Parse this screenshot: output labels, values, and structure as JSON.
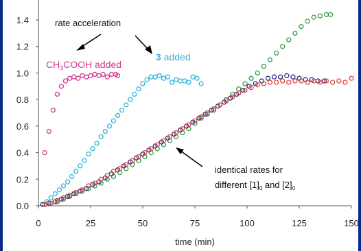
{
  "chart_data": {
    "type": "scatter",
    "title": "",
    "xlabel": "time (min)",
    "ylabel": "",
    "xlim": [
      0,
      150
    ],
    "ylim": [
      0,
      1.45
    ],
    "xticks": [
      "0",
      "25",
      "50",
      "75",
      "100",
      "125",
      "150"
    ],
    "yticks": [
      "0.0",
      "0.2",
      "0.4",
      "0.6",
      "0.8",
      "1.0",
      "1.2",
      "1.4"
    ],
    "grid": false,
    "legend": "none",
    "annotations": {
      "rate_acceleration": "rate acceleration",
      "ch3cooh_prefix": "CH",
      "ch3cooh_sub": "3",
      "ch3cooh_suffix": "COOH added",
      "compound_number": "3",
      "compound_suffix": " added",
      "identical_line1": "identical rates for",
      "identical_line2_a": "different [1]",
      "identical_sub": "0",
      "identical_line2_b": " and [2]",
      "identical_sub2": "0"
    },
    "series": [
      {
        "color": "#d6338f",
        "points": [
          [
            3,
            0.4
          ],
          [
            5,
            0.56
          ],
          [
            7,
            0.72
          ],
          [
            9,
            0.84
          ],
          [
            11,
            0.9
          ],
          [
            13,
            0.94
          ],
          [
            15,
            0.96
          ],
          [
            17,
            0.97
          ],
          [
            19,
            0.96
          ],
          [
            21,
            0.98
          ],
          [
            23,
            0.97
          ],
          [
            25,
            0.98
          ],
          [
            27,
            0.99
          ],
          [
            29,
            0.98
          ],
          [
            31,
            0.99
          ],
          [
            33,
            0.97
          ],
          [
            35,
            0.99
          ],
          [
            37,
            0.99
          ],
          [
            38,
            0.98
          ]
        ]
      },
      {
        "color": "#2fb4d8",
        "points": [
          [
            4,
            0.03
          ],
          [
            6,
            0.06
          ],
          [
            8,
            0.09
          ],
          [
            10,
            0.12
          ],
          [
            12,
            0.15
          ],
          [
            14,
            0.18
          ],
          [
            16,
            0.22
          ],
          [
            18,
            0.26
          ],
          [
            20,
            0.3
          ],
          [
            22,
            0.34
          ],
          [
            24,
            0.39
          ],
          [
            26,
            0.43
          ],
          [
            28,
            0.47
          ],
          [
            30,
            0.52
          ],
          [
            32,
            0.56
          ],
          [
            34,
            0.6
          ],
          [
            36,
            0.64
          ],
          [
            38,
            0.68
          ],
          [
            40,
            0.72
          ],
          [
            42,
            0.76
          ],
          [
            44,
            0.8
          ],
          [
            46,
            0.84
          ],
          [
            48,
            0.88
          ],
          [
            50,
            0.92
          ],
          [
            52,
            0.95
          ],
          [
            54,
            0.97
          ],
          [
            56,
            0.97
          ],
          [
            58,
            0.98
          ],
          [
            60,
            0.96
          ],
          [
            62,
            0.97
          ],
          [
            64,
            0.93
          ],
          [
            66,
            0.95
          ],
          [
            68,
            0.94
          ],
          [
            70,
            0.94
          ],
          [
            72,
            0.93
          ],
          [
            74,
            0.97
          ],
          [
            76,
            0.96
          ],
          [
            78,
            0.92
          ]
        ]
      },
      {
        "color": "#2f9e3f",
        "points": [
          [
            3,
            0.01
          ],
          [
            6,
            0.02
          ],
          [
            9,
            0.03
          ],
          [
            12,
            0.05
          ],
          [
            15,
            0.07
          ],
          [
            18,
            0.09
          ],
          [
            21,
            0.11
          ],
          [
            24,
            0.13
          ],
          [
            27,
            0.15
          ],
          [
            30,
            0.17
          ],
          [
            33,
            0.2
          ],
          [
            36,
            0.22
          ],
          [
            39,
            0.25
          ],
          [
            42,
            0.28
          ],
          [
            45,
            0.31
          ],
          [
            48,
            0.34
          ],
          [
            51,
            0.37
          ],
          [
            54,
            0.4
          ],
          [
            57,
            0.43
          ],
          [
            60,
            0.46
          ],
          [
            63,
            0.49
          ],
          [
            66,
            0.52
          ],
          [
            69,
            0.55
          ],
          [
            72,
            0.58
          ],
          [
            75,
            0.62
          ],
          [
            78,
            0.66
          ],
          [
            81,
            0.69
          ],
          [
            84,
            0.72
          ],
          [
            87,
            0.76
          ],
          [
            90,
            0.8
          ],
          [
            93,
            0.84
          ],
          [
            96,
            0.88
          ],
          [
            99,
            0.92
          ],
          [
            102,
            0.96
          ],
          [
            105,
            1.0
          ],
          [
            108,
            1.05
          ],
          [
            111,
            1.1
          ],
          [
            114,
            1.15
          ],
          [
            117,
            1.2
          ],
          [
            120,
            1.25
          ],
          [
            123,
            1.3
          ],
          [
            126,
            1.35
          ],
          [
            129,
            1.39
          ],
          [
            132,
            1.42
          ],
          [
            135,
            1.43
          ],
          [
            138,
            1.44
          ],
          [
            140,
            1.44
          ]
        ]
      },
      {
        "color": "#2a2a8c",
        "points": [
          [
            2,
            0.01
          ],
          [
            5,
            0.02
          ],
          [
            8,
            0.03
          ],
          [
            11,
            0.05
          ],
          [
            14,
            0.07
          ],
          [
            17,
            0.09
          ],
          [
            20,
            0.11
          ],
          [
            23,
            0.13
          ],
          [
            26,
            0.16
          ],
          [
            29,
            0.18
          ],
          [
            32,
            0.21
          ],
          [
            35,
            0.24
          ],
          [
            38,
            0.27
          ],
          [
            41,
            0.3
          ],
          [
            44,
            0.33
          ],
          [
            47,
            0.36
          ],
          [
            50,
            0.39
          ],
          [
            53,
            0.42
          ],
          [
            56,
            0.45
          ],
          [
            59,
            0.48
          ],
          [
            62,
            0.51
          ],
          [
            65,
            0.54
          ],
          [
            68,
            0.57
          ],
          [
            71,
            0.6
          ],
          [
            74,
            0.63
          ],
          [
            77,
            0.66
          ],
          [
            80,
            0.69
          ],
          [
            83,
            0.72
          ],
          [
            86,
            0.75
          ],
          [
            89,
            0.78
          ],
          [
            92,
            0.81
          ],
          [
            95,
            0.84
          ],
          [
            98,
            0.87
          ],
          [
            101,
            0.9
          ],
          [
            104,
            0.92
          ],
          [
            107,
            0.94
          ],
          [
            110,
            0.96
          ],
          [
            113,
            0.97
          ],
          [
            116,
            0.97
          ],
          [
            119,
            0.98
          ],
          [
            122,
            0.97
          ],
          [
            125,
            0.96
          ],
          [
            128,
            0.95
          ],
          [
            131,
            0.95
          ],
          [
            134,
            0.94
          ],
          [
            137,
            0.94
          ]
        ]
      },
      {
        "color": "#e0453a",
        "points": [
          [
            3,
            0.01
          ],
          [
            6,
            0.02
          ],
          [
            9,
            0.04
          ],
          [
            12,
            0.06
          ],
          [
            15,
            0.08
          ],
          [
            18,
            0.1
          ],
          [
            21,
            0.12
          ],
          [
            24,
            0.15
          ],
          [
            27,
            0.17
          ],
          [
            30,
            0.2
          ],
          [
            33,
            0.23
          ],
          [
            36,
            0.26
          ],
          [
            39,
            0.28
          ],
          [
            42,
            0.31
          ],
          [
            45,
            0.34
          ],
          [
            48,
            0.37
          ],
          [
            51,
            0.4
          ],
          [
            54,
            0.43
          ],
          [
            57,
            0.46
          ],
          [
            60,
            0.49
          ],
          [
            63,
            0.52
          ],
          [
            66,
            0.55
          ],
          [
            69,
            0.58
          ],
          [
            72,
            0.61
          ],
          [
            75,
            0.64
          ],
          [
            78,
            0.67
          ],
          [
            81,
            0.7
          ],
          [
            84,
            0.73
          ],
          [
            87,
            0.76
          ],
          [
            90,
            0.79
          ],
          [
            93,
            0.82
          ],
          [
            96,
            0.85
          ],
          [
            99,
            0.87
          ],
          [
            102,
            0.89
          ],
          [
            105,
            0.91
          ],
          [
            108,
            0.92
          ],
          [
            111,
            0.93
          ],
          [
            114,
            0.93
          ],
          [
            117,
            0.94
          ],
          [
            120,
            0.93
          ],
          [
            123,
            0.94
          ],
          [
            126,
            0.94
          ],
          [
            129,
            0.93
          ],
          [
            132,
            0.94
          ],
          [
            135,
            0.93
          ],
          [
            138,
            0.94
          ],
          [
            141,
            0.93
          ],
          [
            144,
            0.94
          ],
          [
            147,
            0.93
          ],
          [
            150,
            0.96
          ]
        ]
      }
    ]
  }
}
